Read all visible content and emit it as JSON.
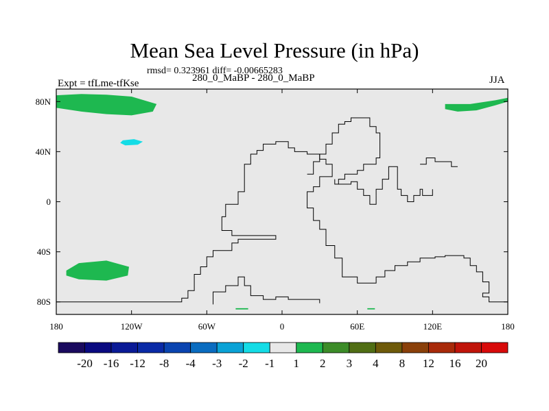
{
  "chart_data": {
    "type": "heatmap",
    "title": "Mean Sea Level Pressure (in hPa)",
    "subtitle": "rmsd= 0.323961 diff= -0.00665283",
    "left_label": "Expt = tfLme-tfKse",
    "center_label": "280_0_MaBP - 280_0_MaBP",
    "right_label": "JJA",
    "xlim": [
      -180,
      180
    ],
    "ylim": [
      -90,
      90
    ],
    "x_ticks": [
      {
        "value": -180,
        "label": "180"
      },
      {
        "value": -120,
        "label": "120W"
      },
      {
        "value": -60,
        "label": "60W"
      },
      {
        "value": 0,
        "label": "0"
      },
      {
        "value": 60,
        "label": "60E"
      },
      {
        "value": 120,
        "label": "120E"
      },
      {
        "value": 180,
        "label": "180"
      }
    ],
    "y_ticks": [
      {
        "value": 80,
        "label": "80N"
      },
      {
        "value": 40,
        "label": "40N"
      },
      {
        "value": 0,
        "label": "0"
      },
      {
        "value": -40,
        "label": "40S"
      },
      {
        "value": -80,
        "label": "80S"
      }
    ],
    "colorbar": {
      "labels": [
        "-20",
        "-16",
        "-12",
        "-8",
        "-4",
        "-3",
        "-2",
        "-1",
        "1",
        "2",
        "3",
        "4",
        "8",
        "12",
        "16",
        "20"
      ],
      "colors": [
        "#1a0a5e",
        "#0a0a80",
        "#0a1a96",
        "#0a2aa6",
        "#0a44b0",
        "#0a6cc0",
        "#0aa2d6",
        "#14dce6",
        "#e8e8e8",
        "#1eb850",
        "#3c8c28",
        "#506e14",
        "#6e5a0a",
        "#8a400a",
        "#a82a0a",
        "#c0140a",
        "#d80a0a"
      ]
    },
    "background_color": "#e8e8e8",
    "regions": [
      {
        "name": "arctic-west-positive",
        "value_bin": "1 to 2",
        "color": "#1eb850",
        "points": [
          [
            -180,
            85
          ],
          [
            -160,
            86
          ],
          [
            -140,
            85.5
          ],
          [
            -120,
            84
          ],
          [
            -100,
            78
          ],
          [
            -103,
            72
          ],
          [
            -120,
            69
          ],
          [
            -140,
            70
          ],
          [
            -160,
            72
          ],
          [
            -180,
            75
          ]
        ]
      },
      {
        "name": "arctic-east-positive",
        "value_bin": "1 to 2",
        "color": "#1eb850",
        "points": [
          [
            130,
            78
          ],
          [
            150,
            78
          ],
          [
            170,
            81
          ],
          [
            180,
            83
          ],
          [
            180,
            80
          ],
          [
            170,
            77
          ],
          [
            155,
            73
          ],
          [
            140,
            72
          ],
          [
            130,
            74
          ]
        ]
      },
      {
        "name": "pacific-negative",
        "value_bin": "-2 to -1",
        "color": "#14dce6",
        "points": [
          [
            -127,
            49
          ],
          [
            -118,
            50
          ],
          [
            -111,
            48
          ],
          [
            -115,
            45.5
          ],
          [
            -125,
            45
          ],
          [
            -129,
            47
          ]
        ]
      },
      {
        "name": "south-pacific-positive",
        "value_bin": "1 to 2",
        "color": "#1eb850",
        "points": [
          [
            -172,
            -55
          ],
          [
            -162,
            -49
          ],
          [
            -140,
            -47
          ],
          [
            -122,
            -52
          ],
          [
            -123,
            -59
          ],
          [
            -140,
            -63
          ],
          [
            -162,
            -62
          ],
          [
            -172,
            -59
          ]
        ]
      },
      {
        "name": "antarctic-speck-1",
        "value_bin": "1 to 2",
        "color": "#1eb850",
        "points": [
          [
            -37,
            -85
          ],
          [
            -27,
            -85
          ],
          [
            -27,
            -86
          ],
          [
            -37,
            -86
          ]
        ]
      },
      {
        "name": "antarctic-speck-2",
        "value_bin": "1 to 2",
        "color": "#1eb850",
        "points": [
          [
            68,
            -85
          ],
          [
            74,
            -85
          ],
          [
            74,
            -86
          ],
          [
            68,
            -86
          ]
        ]
      }
    ],
    "coastlines": [
      {
        "name": "americas-coast",
        "points": [
          [
            -180,
            -80
          ],
          [
            -80,
            -80
          ],
          [
            -80,
            -77
          ],
          [
            -75,
            -77
          ],
          [
            -75,
            -71
          ],
          [
            -70,
            -71
          ],
          [
            -70,
            -58
          ],
          [
            -65,
            -58
          ],
          [
            -65,
            -52
          ],
          [
            -60,
            -52
          ],
          [
            -60,
            -44
          ],
          [
            -55,
            -44
          ],
          [
            -55,
            -39
          ],
          [
            -40,
            -39
          ],
          [
            -40,
            -33
          ],
          [
            -35,
            -33
          ],
          [
            -35,
            -30
          ],
          [
            -5,
            -30
          ],
          [
            -5,
            -27
          ],
          [
            -40,
            -27
          ],
          [
            -40,
            -23
          ],
          [
            -48,
            -23
          ],
          [
            -48,
            -12
          ],
          [
            -45,
            -12
          ],
          [
            -45,
            -2
          ],
          [
            -35,
            -2
          ],
          [
            -35,
            8
          ],
          [
            -30,
            8
          ],
          [
            -30,
            30
          ],
          [
            -25,
            30
          ],
          [
            -25,
            38
          ],
          [
            -20,
            38
          ],
          [
            -20,
            41
          ],
          [
            -15,
            41
          ],
          [
            -15,
            46
          ],
          [
            -5,
            46
          ],
          [
            -5,
            48
          ],
          [
            0,
            48
          ]
        ]
      },
      {
        "name": "afro-eurasia-coast",
        "points": [
          [
            0,
            48
          ],
          [
            5,
            48
          ],
          [
            5,
            43
          ],
          [
            10,
            43
          ],
          [
            10,
            40
          ],
          [
            20,
            40
          ],
          [
            20,
            38
          ],
          [
            30,
            38
          ],
          [
            30,
            34
          ],
          [
            35,
            34
          ],
          [
            35,
            30
          ],
          [
            40,
            30
          ],
          [
            40,
            20
          ],
          [
            30,
            20
          ],
          [
            30,
            12
          ],
          [
            25,
            12
          ],
          [
            25,
            8
          ],
          [
            20,
            8
          ],
          [
            20,
            -5
          ],
          [
            25,
            -5
          ],
          [
            25,
            -15
          ],
          [
            30,
            -15
          ],
          [
            30,
            -22
          ],
          [
            35,
            -22
          ],
          [
            35,
            -35
          ],
          [
            42,
            -35
          ],
          [
            42,
            -45
          ],
          [
            48,
            -45
          ],
          [
            48,
            -60
          ],
          [
            60,
            -60
          ],
          [
            60,
            -65
          ],
          [
            75,
            -65
          ],
          [
            75,
            -60
          ],
          [
            82,
            -60
          ],
          [
            82,
            -55
          ],
          [
            90,
            -55
          ],
          [
            90,
            -51
          ],
          [
            100,
            -51
          ],
          [
            100,
            -48
          ],
          [
            110,
            -48
          ],
          [
            110,
            -45
          ],
          [
            122,
            -45
          ],
          [
            122,
            -44
          ],
          [
            130,
            -44
          ],
          [
            130,
            -43
          ],
          [
            145,
            -43
          ],
          [
            145,
            -45
          ],
          [
            150,
            -45
          ],
          [
            150,
            -51
          ],
          [
            155,
            -51
          ],
          [
            155,
            -56
          ],
          [
            160,
            -56
          ],
          [
            160,
            -64
          ],
          [
            165,
            -64
          ],
          [
            165,
            -73
          ],
          [
            160,
            -73
          ],
          [
            160,
            -76
          ],
          [
            165,
            -76
          ],
          [
            165,
            -80
          ],
          [
            180,
            -80
          ]
        ]
      },
      {
        "name": "antarctic-inner-coast",
        "points": [
          [
            -55,
            -82
          ],
          [
            -55,
            -72
          ],
          [
            -45,
            -72
          ],
          [
            -45,
            -67
          ],
          [
            -35,
            -67
          ],
          [
            -35,
            -60
          ],
          [
            -30,
            -60
          ],
          [
            -30,
            -67
          ],
          [
            -25,
            -67
          ],
          [
            -25,
            -75
          ],
          [
            -15,
            -75
          ],
          [
            -15,
            -78
          ],
          [
            -5,
            -78
          ],
          [
            -5,
            -76
          ],
          [
            5,
            -76
          ],
          [
            5,
            -78
          ],
          [
            30,
            -78
          ],
          [
            30,
            -81
          ]
        ]
      },
      {
        "name": "siberia-coast",
        "points": [
          [
            20,
            22
          ],
          [
            25,
            22
          ],
          [
            25,
            32
          ],
          [
            30,
            32
          ],
          [
            30,
            38
          ],
          [
            35,
            38
          ],
          [
            35,
            46
          ],
          [
            40,
            46
          ],
          [
            40,
            55
          ],
          [
            45,
            55
          ],
          [
            45,
            62
          ],
          [
            50,
            62
          ],
          [
            50,
            64
          ],
          [
            55,
            64
          ],
          [
            55,
            67
          ],
          [
            70,
            67
          ],
          [
            70,
            60
          ],
          [
            75,
            60
          ],
          [
            75,
            55
          ],
          [
            78,
            55
          ],
          [
            78,
            35
          ],
          [
            75,
            35
          ],
          [
            75,
            30
          ],
          [
            65,
            30
          ],
          [
            65,
            25
          ],
          [
            60,
            25
          ],
          [
            60,
            22
          ],
          [
            50,
            22
          ],
          [
            50,
            18
          ],
          [
            45,
            18
          ],
          [
            45,
            14
          ],
          [
            42,
            14
          ],
          [
            42,
            18
          ]
        ]
      },
      {
        "name": "asia-pacific-coast",
        "points": [
          [
            45,
            14
          ],
          [
            55,
            14
          ],
          [
            55,
            16
          ],
          [
            60,
            16
          ],
          [
            60,
            10
          ],
          [
            65,
            10
          ],
          [
            65,
            5
          ],
          [
            70,
            5
          ],
          [
            70,
            -2
          ],
          [
            75,
            -2
          ],
          [
            75,
            10
          ],
          [
            80,
            10
          ],
          [
            80,
            18
          ],
          [
            85,
            18
          ],
          [
            85,
            28
          ],
          [
            92,
            28
          ],
          [
            92,
            10
          ],
          [
            95,
            10
          ],
          [
            95,
            5
          ],
          [
            100,
            5
          ],
          [
            100,
            0
          ],
          [
            105,
            0
          ],
          [
            105,
            5
          ],
          [
            110,
            5
          ],
          [
            110,
            10
          ],
          [
            112,
            10
          ],
          [
            112,
            5
          ],
          [
            120,
            5
          ],
          [
            120,
            10
          ]
        ]
      },
      {
        "name": "north-pacific-coast",
        "points": [
          [
            110,
            30
          ],
          [
            115,
            30
          ],
          [
            115,
            35
          ],
          [
            122,
            35
          ],
          [
            122,
            32
          ],
          [
            135,
            32
          ],
          [
            135,
            28
          ],
          [
            140,
            28
          ]
        ]
      }
    ]
  }
}
